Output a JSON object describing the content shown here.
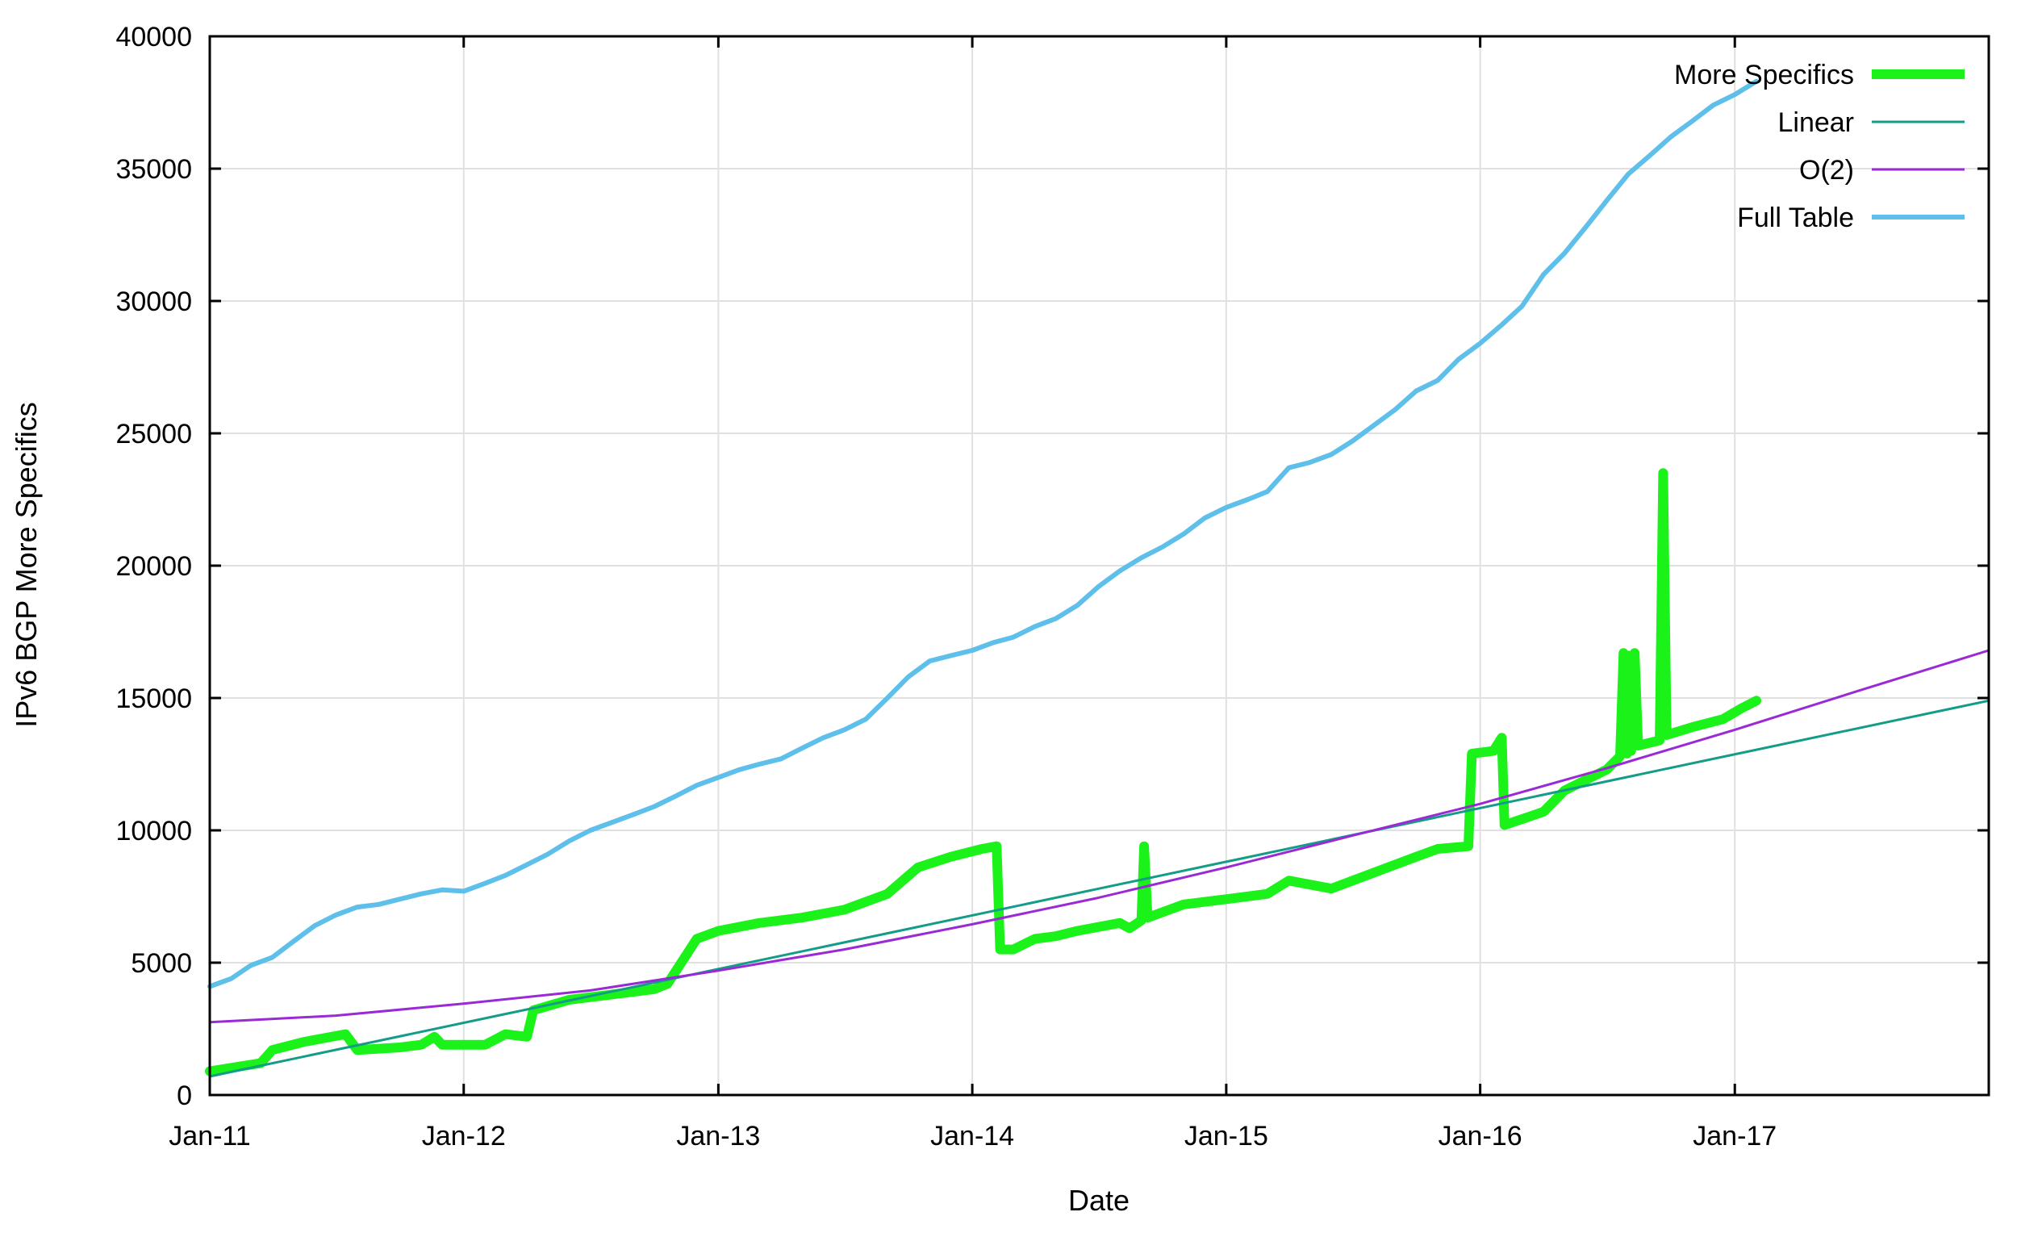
{
  "chart_data": {
    "type": "line",
    "title": "",
    "xlabel": "Date",
    "ylabel": "IPv6 BGP More Specifics",
    "ylim": [
      0,
      40000
    ],
    "xlim": [
      "2011-01-01",
      "2018-01-01"
    ],
    "grid": true,
    "legend_position": "top-right",
    "x_ticks": [
      {
        "date": "2011-01-01",
        "label": "Jan-11"
      },
      {
        "date": "2012-01-01",
        "label": "Jan-12"
      },
      {
        "date": "2013-01-01",
        "label": "Jan-13"
      },
      {
        "date": "2014-01-01",
        "label": "Jan-14"
      },
      {
        "date": "2015-01-01",
        "label": "Jan-15"
      },
      {
        "date": "2016-01-01",
        "label": "Jan-16"
      },
      {
        "date": "2017-01-01",
        "label": "Jan-17"
      }
    ],
    "y_ticks": [
      0,
      5000,
      10000,
      15000,
      20000,
      25000,
      30000,
      35000,
      40000
    ],
    "series": [
      {
        "name": "Full Table",
        "color": "#5ec0ea",
        "width": 6,
        "points": [
          [
            "2011-01-01",
            4100
          ],
          [
            "2011-02-01",
            4400
          ],
          [
            "2011-03-01",
            4900
          ],
          [
            "2011-04-01",
            5200
          ],
          [
            "2011-05-01",
            5800
          ],
          [
            "2011-06-01",
            6400
          ],
          [
            "2011-07-01",
            6800
          ],
          [
            "2011-08-01",
            7100
          ],
          [
            "2011-09-01",
            7200
          ],
          [
            "2011-10-01",
            7400
          ],
          [
            "2011-11-01",
            7600
          ],
          [
            "2011-12-01",
            7750
          ],
          [
            "2012-01-01",
            7700
          ],
          [
            "2012-02-01",
            8000
          ],
          [
            "2012-03-01",
            8300
          ],
          [
            "2012-04-01",
            8700
          ],
          [
            "2012-05-01",
            9100
          ],
          [
            "2012-06-01",
            9600
          ],
          [
            "2012-07-01",
            10000
          ],
          [
            "2012-08-01",
            10300
          ],
          [
            "2012-09-01",
            10600
          ],
          [
            "2012-10-01",
            10900
          ],
          [
            "2012-11-01",
            11300
          ],
          [
            "2012-12-01",
            11700
          ],
          [
            "2013-01-01",
            12000
          ],
          [
            "2013-02-01",
            12300
          ],
          [
            "2013-03-01",
            12500
          ],
          [
            "2013-04-01",
            12700
          ],
          [
            "2013-05-01",
            13100
          ],
          [
            "2013-06-01",
            13500
          ],
          [
            "2013-07-01",
            13800
          ],
          [
            "2013-08-01",
            14200
          ],
          [
            "2013-09-01",
            15000
          ],
          [
            "2013-10-01",
            15800
          ],
          [
            "2013-11-01",
            16400
          ],
          [
            "2013-12-01",
            16600
          ],
          [
            "2014-01-01",
            16800
          ],
          [
            "2014-02-01",
            17100
          ],
          [
            "2014-03-01",
            17300
          ],
          [
            "2014-04-01",
            17700
          ],
          [
            "2014-05-01",
            18000
          ],
          [
            "2014-06-01",
            18500
          ],
          [
            "2014-07-01",
            19200
          ],
          [
            "2014-08-01",
            19800
          ],
          [
            "2014-09-01",
            20300
          ],
          [
            "2014-10-01",
            20700
          ],
          [
            "2014-11-01",
            21200
          ],
          [
            "2014-12-01",
            21800
          ],
          [
            "2015-01-01",
            22200
          ],
          [
            "2015-02-01",
            22500
          ],
          [
            "2015-03-01",
            22800
          ],
          [
            "2015-04-01",
            23700
          ],
          [
            "2015-05-01",
            23900
          ],
          [
            "2015-06-01",
            24200
          ],
          [
            "2015-07-01",
            24700
          ],
          [
            "2015-08-01",
            25300
          ],
          [
            "2015-09-01",
            25900
          ],
          [
            "2015-10-01",
            26600
          ],
          [
            "2015-11-01",
            27000
          ],
          [
            "2015-12-01",
            27800
          ],
          [
            "2016-01-01",
            28400
          ],
          [
            "2016-02-01",
            29100
          ],
          [
            "2016-03-01",
            29800
          ],
          [
            "2016-04-01",
            31000
          ],
          [
            "2016-05-01",
            31800
          ],
          [
            "2016-06-01",
            32800
          ],
          [
            "2016-07-01",
            33800
          ],
          [
            "2016-08-01",
            34800
          ],
          [
            "2016-09-01",
            35500
          ],
          [
            "2016-10-01",
            36200
          ],
          [
            "2016-11-01",
            36800
          ],
          [
            "2016-12-01",
            37400
          ],
          [
            "2017-01-01",
            37800
          ],
          [
            "2017-02-01",
            38300
          ]
        ]
      },
      {
        "name": "More Specifics",
        "color": "#1af21a",
        "width": 12,
        "points": [
          [
            "2011-01-01",
            900
          ],
          [
            "2011-03-15",
            1200
          ],
          [
            "2011-04-01",
            1700
          ],
          [
            "2011-05-15",
            2000
          ],
          [
            "2011-07-15",
            2300
          ],
          [
            "2011-08-01",
            1700
          ],
          [
            "2011-10-01",
            1800
          ],
          [
            "2011-11-01",
            1900
          ],
          [
            "2011-11-20",
            2200
          ],
          [
            "2011-12-01",
            1900
          ],
          [
            "2012-02-01",
            1900
          ],
          [
            "2012-03-01",
            2300
          ],
          [
            "2012-04-01",
            2200
          ],
          [
            "2012-04-10",
            3200
          ],
          [
            "2012-06-01",
            3600
          ],
          [
            "2012-08-01",
            3800
          ],
          [
            "2012-10-01",
            4000
          ],
          [
            "2012-10-20",
            4200
          ],
          [
            "2012-12-01",
            5900
          ],
          [
            "2013-01-01",
            6200
          ],
          [
            "2013-03-01",
            6500
          ],
          [
            "2013-05-01",
            6700
          ],
          [
            "2013-07-01",
            7000
          ],
          [
            "2013-09-01",
            7600
          ],
          [
            "2013-10-15",
            8600
          ],
          [
            "2013-12-01",
            9000
          ],
          [
            "2014-01-15",
            9300
          ],
          [
            "2014-02-05",
            9400
          ],
          [
            "2014-02-10",
            5500
          ],
          [
            "2014-03-01",
            5500
          ],
          [
            "2014-04-01",
            5900
          ],
          [
            "2014-05-01",
            6000
          ],
          [
            "2014-06-01",
            6200
          ],
          [
            "2014-08-01",
            6500
          ],
          [
            "2014-08-15",
            6300
          ],
          [
            "2014-09-01",
            6600
          ],
          [
            "2014-09-05",
            9400
          ],
          [
            "2014-09-10",
            6700
          ],
          [
            "2014-11-01",
            7200
          ],
          [
            "2015-01-01",
            7400
          ],
          [
            "2015-03-01",
            7600
          ],
          [
            "2015-04-01",
            8100
          ],
          [
            "2015-06-01",
            7800
          ],
          [
            "2015-08-01",
            8400
          ],
          [
            "2015-10-01",
            9000
          ],
          [
            "2015-11-01",
            9300
          ],
          [
            "2015-12-15",
            9400
          ],
          [
            "2015-12-20",
            12900
          ],
          [
            "2016-01-20",
            13000
          ],
          [
            "2016-02-01",
            13500
          ],
          [
            "2016-02-05",
            10200
          ],
          [
            "2016-04-01",
            10700
          ],
          [
            "2016-05-01",
            11500
          ],
          [
            "2016-07-01",
            12300
          ],
          [
            "2016-07-20",
            12800
          ],
          [
            "2016-07-25",
            16700
          ],
          [
            "2016-07-30",
            12900
          ],
          [
            "2016-08-01",
            16600
          ],
          [
            "2016-08-05",
            13000
          ],
          [
            "2016-08-10",
            16700
          ],
          [
            "2016-08-15",
            13200
          ],
          [
            "2016-09-15",
            13400
          ],
          [
            "2016-09-20",
            23500
          ],
          [
            "2016-09-25",
            13600
          ],
          [
            "2016-11-01",
            13900
          ],
          [
            "2016-12-15",
            14200
          ],
          [
            "2017-01-10",
            14600
          ],
          [
            "2017-02-01",
            14900
          ]
        ]
      },
      {
        "name": "Linear",
        "color": "#139c87",
        "width": 3,
        "points": [
          [
            "2011-01-01",
            700
          ],
          [
            "2018-01-01",
            14900
          ]
        ]
      },
      {
        "name": "O(2)",
        "color": "#9a29d6",
        "width": 3,
        "points": [
          [
            "2011-01-01",
            2750
          ],
          [
            "2011-07-01",
            3000
          ],
          [
            "2012-01-01",
            3450
          ],
          [
            "2012-07-01",
            3950
          ],
          [
            "2013-01-01",
            4700
          ],
          [
            "2013-07-01",
            5500
          ],
          [
            "2014-01-01",
            6450
          ],
          [
            "2014-07-01",
            7450
          ],
          [
            "2015-01-01",
            8600
          ],
          [
            "2015-07-01",
            9800
          ],
          [
            "2016-01-01",
            11000
          ],
          [
            "2016-07-01",
            12350
          ],
          [
            "2017-01-01",
            13800
          ],
          [
            "2017-07-01",
            15300
          ],
          [
            "2018-01-01",
            16800
          ]
        ]
      }
    ],
    "legend_order": [
      "More Specifics",
      "Linear",
      "O(2)",
      "Full Table"
    ]
  }
}
